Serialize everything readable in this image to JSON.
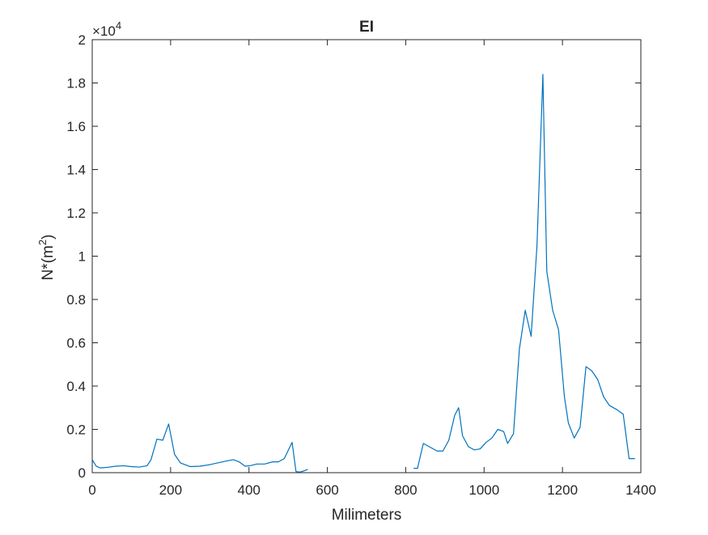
{
  "chart_data": {
    "type": "line",
    "title": "EI",
    "xlabel": "Milimeters",
    "ylabel": "N*(m",
    "ylabel_superscript": "2",
    "ylabel_close": ")",
    "exponent_label": {
      "prefix": "×10",
      "power": "4"
    },
    "xlim": [
      0,
      1400
    ],
    "ylim": [
      0,
      2
    ],
    "xticks": [
      0,
      200,
      400,
      600,
      800,
      1000,
      1200,
      1400
    ],
    "xtick_labels": [
      "0",
      "200",
      "400",
      "600",
      "800",
      "1000",
      "1200",
      "1400"
    ],
    "yticks": [
      0,
      0.2,
      0.4,
      0.6,
      0.8,
      1,
      1.2,
      1.4,
      1.6,
      1.8,
      2
    ],
    "ytick_labels": [
      "0",
      "0.2",
      "0.4",
      "0.6",
      "0.8",
      "1",
      "1.2",
      "1.4",
      "1.6",
      "1.8",
      "2"
    ],
    "grid": false,
    "series_color": "#0072BD",
    "segments": [
      {
        "x": [
          0,
          10,
          20,
          40,
          60,
          80,
          100,
          120,
          140,
          150,
          165,
          180,
          195,
          210,
          225,
          250,
          275,
          300,
          320,
          340,
          360,
          375,
          390,
          405,
          420,
          440,
          460,
          475,
          490,
          510,
          520,
          530,
          540,
          550
        ],
        "y": [
          0.06,
          0.03,
          0.022,
          0.025,
          0.03,
          0.032,
          0.028,
          0.026,
          0.032,
          0.06,
          0.155,
          0.15,
          0.225,
          0.085,
          0.045,
          0.028,
          0.03,
          0.037,
          0.045,
          0.053,
          0.06,
          0.05,
          0.03,
          0.033,
          0.04,
          0.04,
          0.05,
          0.05,
          0.065,
          0.14,
          0.005,
          0.003,
          0.008,
          0.015
        ]
      },
      {
        "x": [
          820,
          830,
          845,
          860,
          880,
          895,
          910,
          925,
          935,
          945,
          960,
          975,
          990,
          1005,
          1020,
          1035,
          1050,
          1060,
          1075,
          1090,
          1105,
          1120,
          1135,
          1150,
          1160,
          1175,
          1190,
          1205,
          1215,
          1230,
          1245,
          1260,
          1275,
          1290,
          1305,
          1320,
          1340,
          1355,
          1370,
          1385
        ],
        "y": [
          0.02,
          0.02,
          0.135,
          0.12,
          0.1,
          0.1,
          0.15,
          0.265,
          0.3,
          0.17,
          0.12,
          0.105,
          0.11,
          0.14,
          0.16,
          0.2,
          0.19,
          0.135,
          0.18,
          0.57,
          0.75,
          0.63,
          1.05,
          1.84,
          0.93,
          0.75,
          0.66,
          0.35,
          0.23,
          0.16,
          0.21,
          0.49,
          0.47,
          0.43,
          0.35,
          0.31,
          0.29,
          0.27,
          0.065,
          0.065
        ]
      }
    ]
  }
}
